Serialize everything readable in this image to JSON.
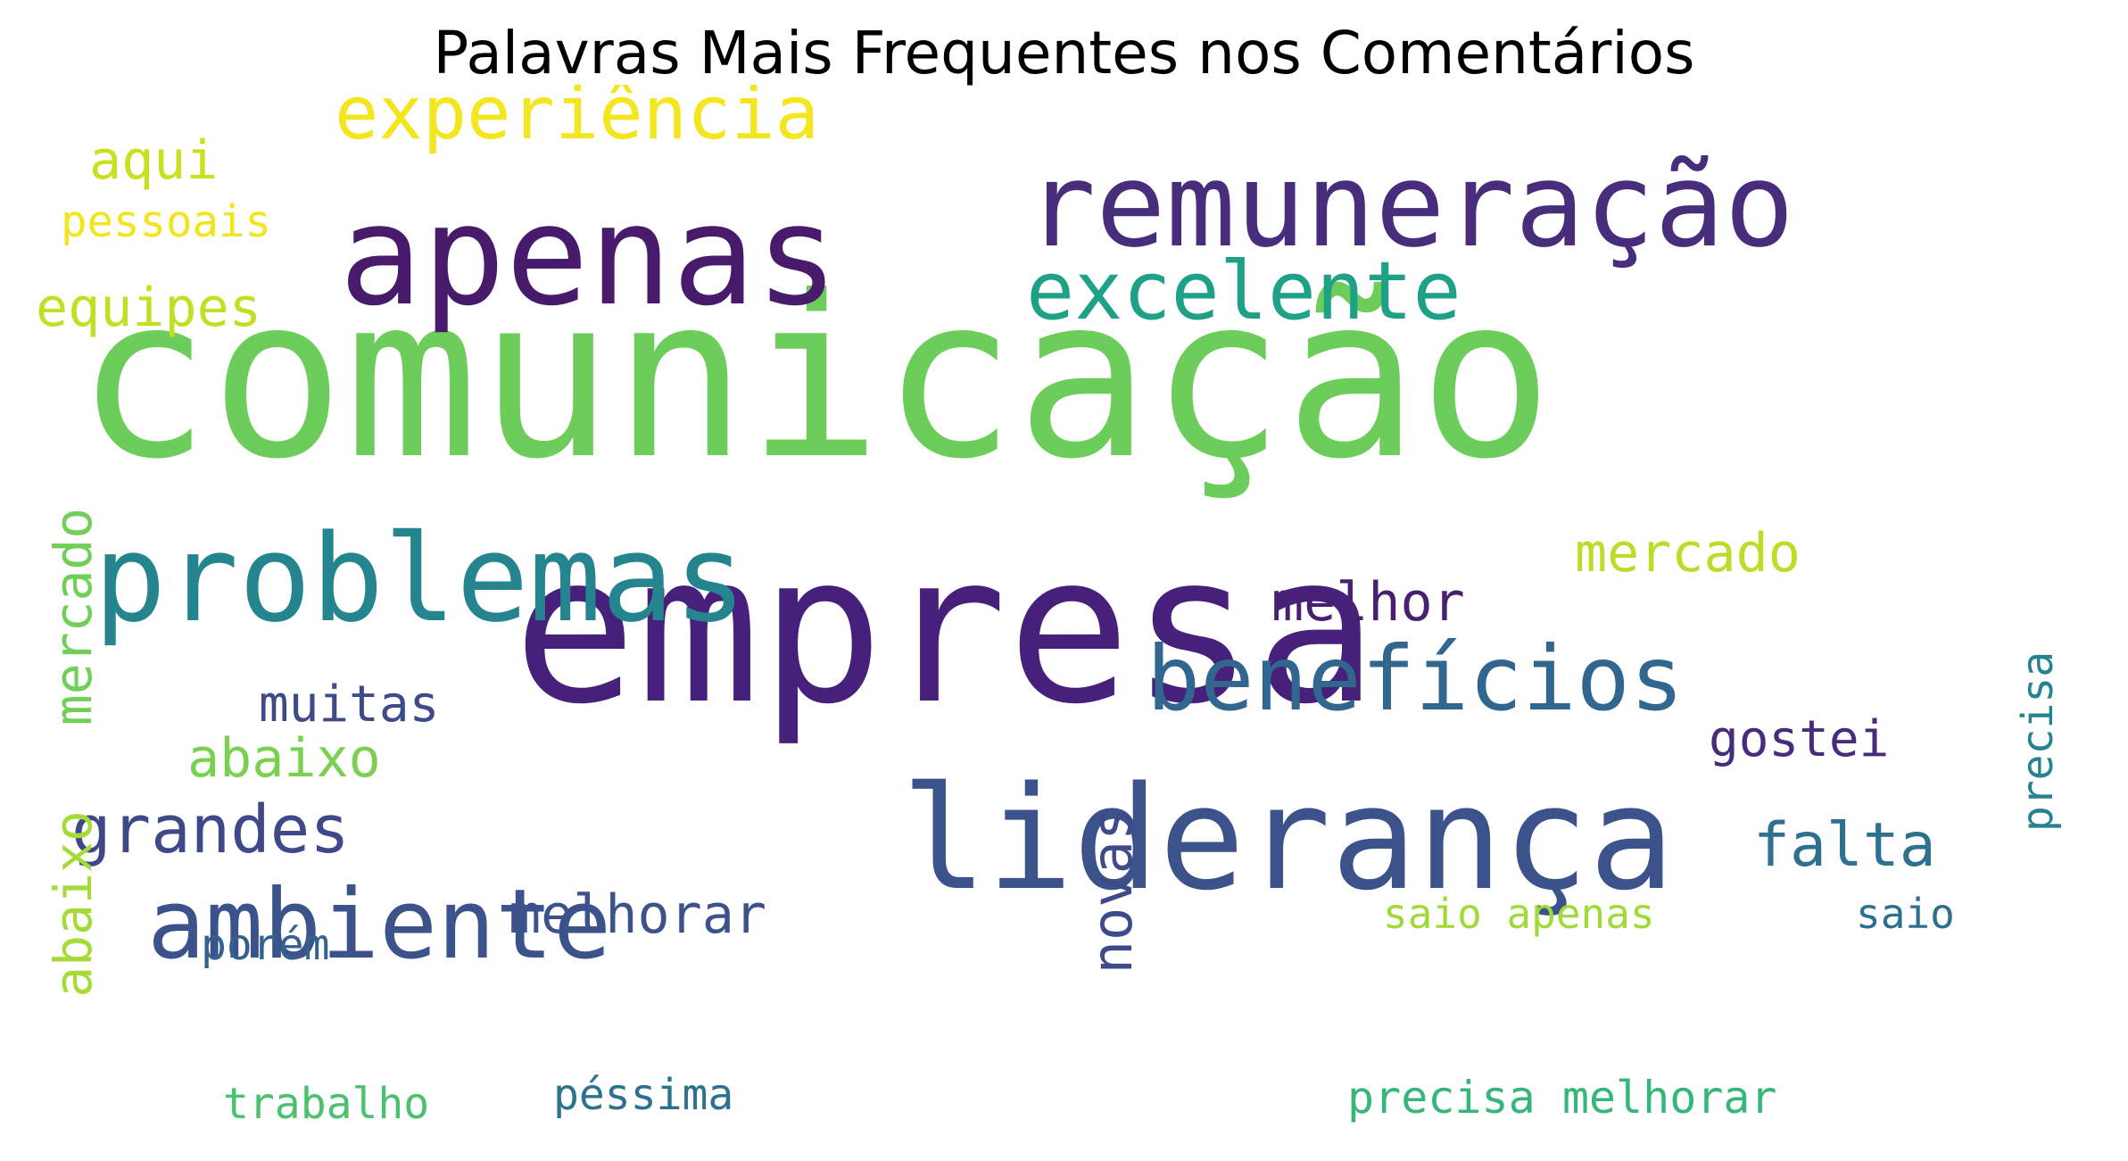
{
  "title": "Palavras Mais Frequentes nos Comentários",
  "chart_data": {
    "type": "wordcloud",
    "title": "Palavras Mais Frequentes nos Comentários",
    "words": [
      {
        "text": "comunicação",
        "weight": 100,
        "color": "#6ccd5a",
        "orientation": "horizontal"
      },
      {
        "text": "empresa",
        "weight": 92,
        "color": "#46207a",
        "orientation": "horizontal"
      },
      {
        "text": "liderança",
        "weight": 70,
        "color": "#3b528b",
        "orientation": "horizontal"
      },
      {
        "text": "apenas",
        "weight": 64,
        "color": "#481a6c",
        "orientation": "horizontal"
      },
      {
        "text": "remuneração",
        "weight": 58,
        "color": "#472d7b",
        "orientation": "horizontal"
      },
      {
        "text": "problemas",
        "weight": 58,
        "color": "#25858e",
        "orientation": "horizontal"
      },
      {
        "text": "benefícios",
        "weight": 47,
        "color": "#31668e",
        "orientation": "horizontal"
      },
      {
        "text": "ambiente",
        "weight": 46,
        "color": "#3b528b",
        "orientation": "horizontal"
      },
      {
        "text": "excelente",
        "weight": 37,
        "color": "#1fa187",
        "orientation": "horizontal"
      },
      {
        "text": "experiência",
        "weight": 35,
        "color": "#f3e51e",
        "orientation": "horizontal"
      },
      {
        "text": "grandes",
        "weight": 29,
        "color": "#3f4889",
        "orientation": "horizontal"
      },
      {
        "text": "falta",
        "weight": 29,
        "color": "#2d718e",
        "orientation": "horizontal"
      },
      {
        "text": "aqui",
        "weight": 26,
        "color": "#c8e020",
        "orientation": "horizontal"
      },
      {
        "text": "mercado",
        "weight": 26,
        "color": "#bade28",
        "orientation": "horizontal"
      },
      {
        "text": "melhor",
        "weight": 26,
        "color": "#482071",
        "orientation": "horizontal"
      },
      {
        "text": "equipes",
        "weight": 26,
        "color": "#c2df23",
        "orientation": "horizontal"
      },
      {
        "text": "abaixo",
        "weight": 26,
        "color": "#7ad151",
        "orientation": "horizontal"
      },
      {
        "text": "mercado",
        "weight": 26,
        "color": "#70cf57",
        "orientation": "vertical"
      },
      {
        "text": "abaixo",
        "weight": 26,
        "color": "#a5db36",
        "orientation": "vertical"
      },
      {
        "text": "novas",
        "weight": 26,
        "color": "#3e4a89",
        "orientation": "vertical"
      },
      {
        "text": "muitas",
        "weight": 24,
        "color": "#3e4a89",
        "orientation": "horizontal"
      },
      {
        "text": "gostei",
        "weight": 24,
        "color": "#472c7a",
        "orientation": "horizontal"
      },
      {
        "text": "melhorar",
        "weight": 24,
        "color": "#3b528b",
        "orientation": "horizontal"
      },
      {
        "text": "precisa",
        "weight": 22,
        "color": "#26828e",
        "orientation": "vertical"
      },
      {
        "text": "pessoais",
        "weight": 20,
        "color": "#f1e51d",
        "orientation": "horizontal"
      },
      {
        "text": "porém",
        "weight": 20,
        "color": "#34618d",
        "orientation": "horizontal"
      },
      {
        "text": "saio apenas",
        "weight": 19,
        "color": "#a0da39",
        "orientation": "horizontal"
      },
      {
        "text": "saio",
        "weight": 19,
        "color": "#2e6e8e",
        "orientation": "horizontal"
      },
      {
        "text": "precisa melhorar",
        "weight": 20,
        "color": "#35b779",
        "orientation": "horizontal"
      },
      {
        "text": "trabalho",
        "weight": 19,
        "color": "#4ac16d",
        "orientation": "horizontal"
      },
      {
        "text": "péssima",
        "weight": 19,
        "color": "#2c728e",
        "orientation": "horizontal"
      }
    ]
  }
}
